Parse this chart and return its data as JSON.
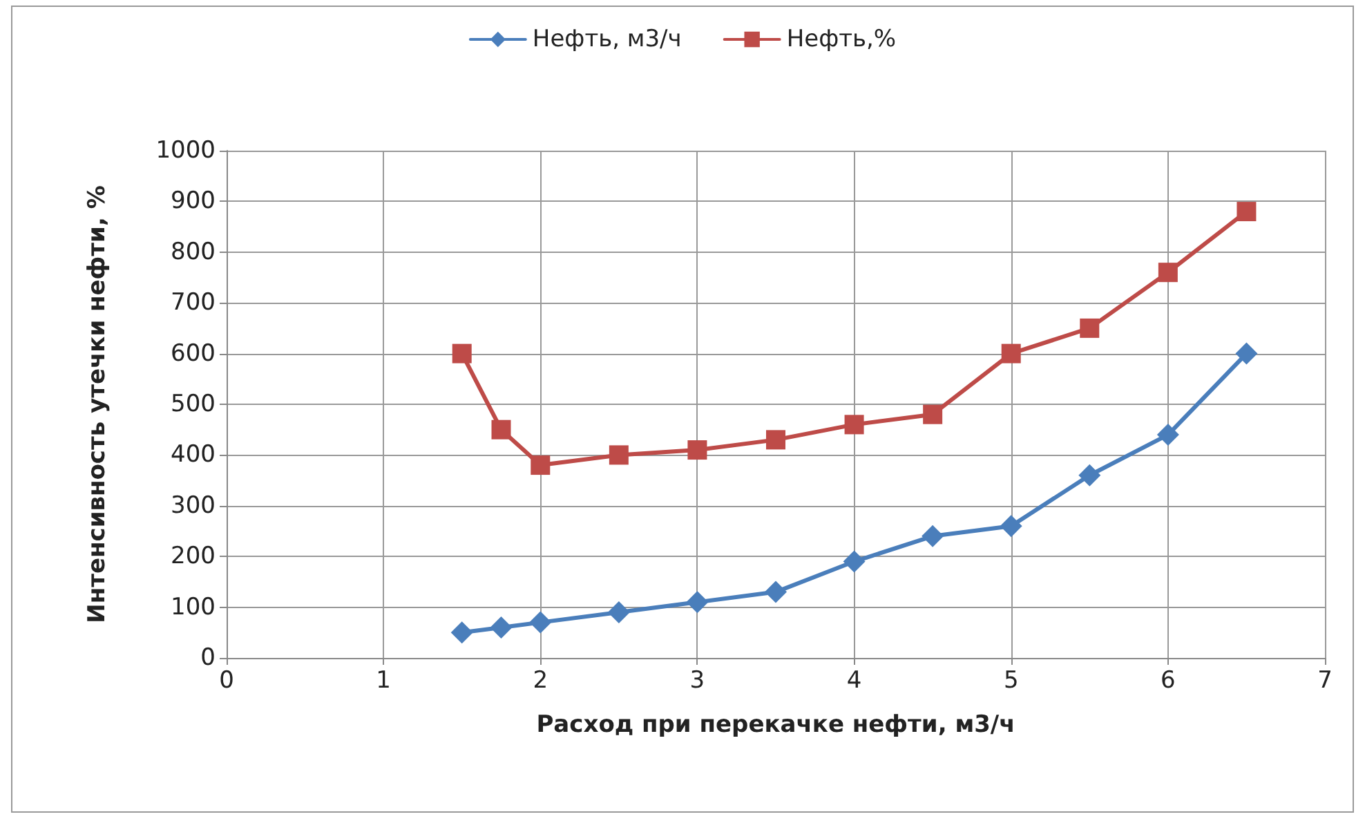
{
  "chart_data": {
    "type": "line",
    "xlabel": "Расход при перекачке нефти, м3/ч",
    "ylabel": "Интенсивность утечки нефти, %",
    "x": [
      1.5,
      1.75,
      2,
      2.5,
      3,
      3.5,
      4,
      4.5,
      5,
      5.5,
      6,
      6.5
    ],
    "series": [
      {
        "name": "Нефть, м3/ч",
        "color": "#4a7ebb",
        "marker": "diamond",
        "values": [
          50,
          60,
          70,
          90,
          110,
          130,
          190,
          240,
          260,
          360,
          440,
          600
        ]
      },
      {
        "name": "Нефть,%",
        "color": "#be4b48",
        "marker": "square",
        "values": [
          600,
          450,
          380,
          400,
          410,
          430,
          460,
          480,
          600,
          650,
          760,
          880
        ]
      }
    ],
    "xlim": [
      0,
      7
    ],
    "xticks": [
      0,
      1,
      2,
      3,
      4,
      5,
      6,
      7
    ],
    "ylim": [
      0,
      1000
    ],
    "yticks": [
      0,
      100,
      200,
      300,
      400,
      500,
      600,
      700,
      800,
      900,
      1000
    ],
    "grid": true,
    "legend": "top",
    "line_style": "solid"
  }
}
